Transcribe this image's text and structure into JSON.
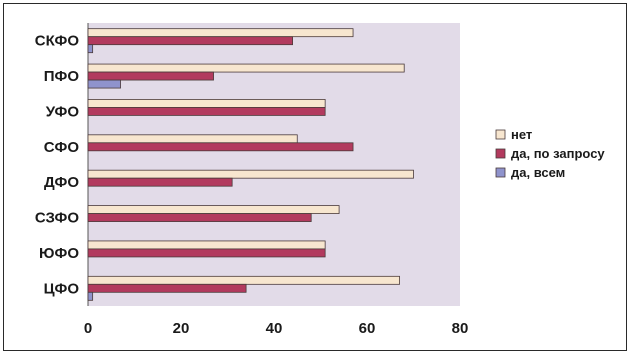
{
  "chart_data": {
    "type": "bar",
    "orientation": "horizontal",
    "categories": [
      "СКФО",
      "ПФО",
      "УФО",
      "СФО",
      "ДФО",
      "СЗФО",
      "ЮФО",
      "ЦФО"
    ],
    "series": [
      {
        "name": "нет",
        "values": [
          57,
          68,
          51,
          45,
          70,
          54,
          51,
          67
        ],
        "color": "#f7e6cf"
      },
      {
        "name": "да, по запросу",
        "values": [
          44,
          27,
          51,
          57,
          31,
          48,
          51,
          34
        ],
        "color": "#b23a5e"
      },
      {
        "name": "да, всем",
        "values": [
          1,
          7,
          0,
          0,
          0,
          0,
          0,
          1
        ],
        "color": "#8f93cc"
      }
    ],
    "xlim": [
      0,
      80
    ],
    "xticks": [
      0,
      20,
      40,
      60,
      80
    ],
    "xtick_labels": [
      "0",
      "20",
      "40",
      "60",
      "80"
    ],
    "plot_background": "#e2dbe8",
    "legend_position": "right",
    "grid": false,
    "title": "",
    "xlabel": "",
    "ylabel": ""
  }
}
